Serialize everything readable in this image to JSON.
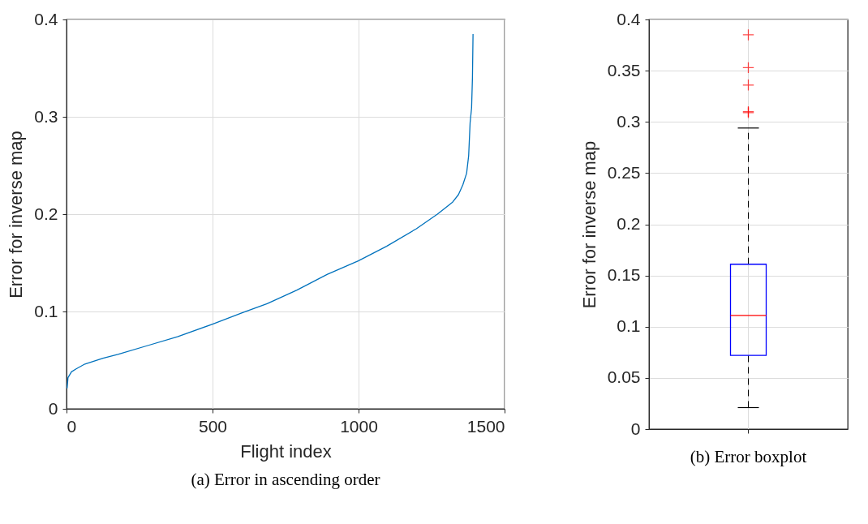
{
  "chart_data": [
    {
      "type": "line",
      "xlabel": "Flight index",
      "ylabel": "Error for inverse map",
      "annotations": [
        "(a) Error in ascending order"
      ],
      "xlim": [
        0,
        1500
      ],
      "xticks": [
        0,
        500,
        1000,
        1500
      ],
      "ylim": [
        0,
        0.4
      ],
      "yticks": [
        0,
        0.1,
        0.2,
        0.3,
        0.4
      ],
      "grid": true,
      "series": [
        {
          "color": "#0072bd",
          "x": [
            2,
            5,
            17,
            33,
            63,
            125,
            176,
            278,
            380,
            500,
            605,
            687,
            789,
            892,
            999,
            1096,
            1198,
            1270,
            1321,
            1342,
            1357,
            1370,
            1377,
            1382,
            1387,
            1390,
            1392
          ],
          "values": [
            0.021,
            0.032,
            0.038,
            0.041,
            0.046,
            0.052,
            0.056,
            0.065,
            0.074,
            0.087,
            0.099,
            0.108,
            0.122,
            0.138,
            0.152,
            0.167,
            0.185,
            0.2,
            0.212,
            0.22,
            0.23,
            0.242,
            0.26,
            0.294,
            0.309,
            0.34,
            0.385
          ]
        }
      ]
    },
    {
      "type": "box",
      "ylabel": "Error for inverse map",
      "annotations": [
        "(b) Error boxplot"
      ],
      "categories": [
        null
      ],
      "ylim": [
        0,
        0.4
      ],
      "yticks": [
        0,
        0.05,
        0.1,
        0.15,
        0.2,
        0.25,
        0.3,
        0.35,
        0.4
      ],
      "grid": true,
      "tick_labels": "y",
      "series": [
        {
          "color": "#0000ff",
          "boxes": [
            {
              "low": 0.021,
              "q1": 0.072,
              "median": 0.111,
              "q3": 0.161,
              "high": 0.294,
              "outliers": [
                0.309,
                0.31,
                0.336,
                0.353,
                0.385
              ]
            }
          ]
        }
      ]
    }
  ]
}
